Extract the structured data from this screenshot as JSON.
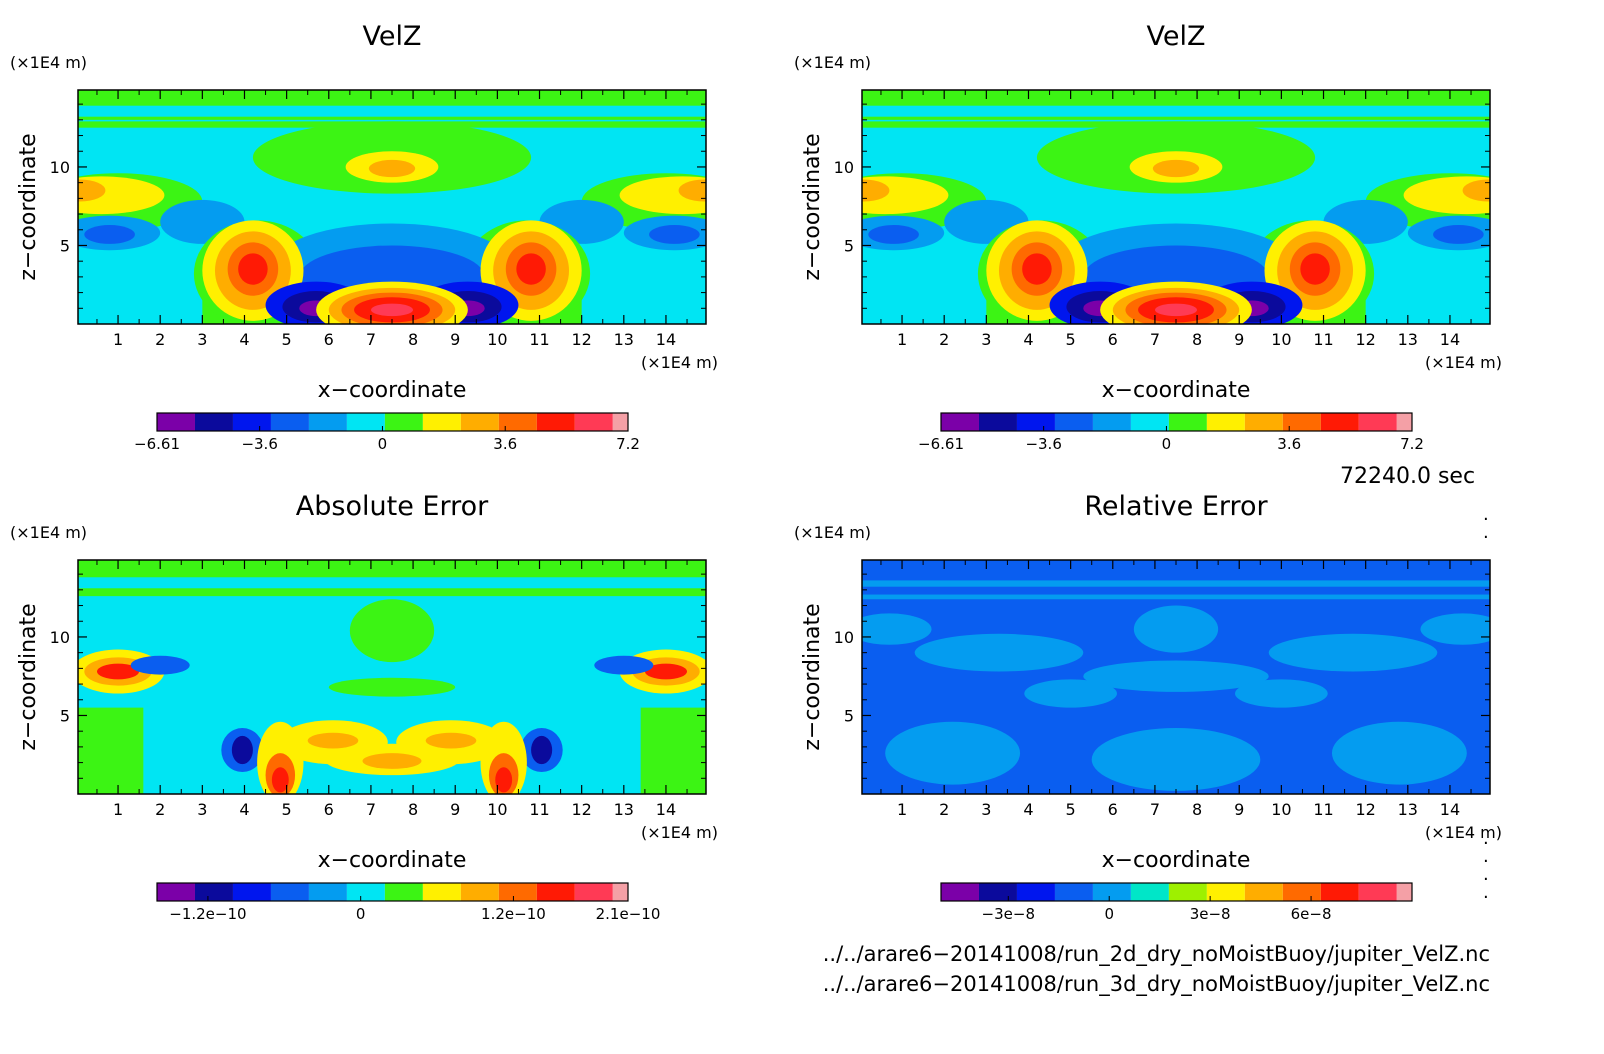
{
  "palette": [
    "#7b00a8",
    "#0b0a9c",
    "#0016ee",
    "#0a5ef0",
    "#049cf0",
    "#00e5f3",
    "#3cf414",
    "#fff000",
    "#ffad00",
    "#ff6a00",
    "#ff1a05",
    "#ff3a55",
    "#f4a0a6"
  ],
  "panels": [
    {
      "title": "VelZ",
      "xlabel": "x−coordinate",
      "ylabel": "z−coordinate",
      "x_unit": "(×1E4 m)",
      "y_unit": "(×1E4 m)",
      "colorbar_labels": [
        "−6.61",
        "−3.6",
        "0",
        "3.6",
        "7.2"
      ]
    },
    {
      "title": "VelZ",
      "xlabel": "x−coordinate",
      "ylabel": "z−coordinate",
      "x_unit": "(×1E4 m)",
      "y_unit": "(×1E4 m)",
      "colorbar_labels": [
        "−6.61",
        "−3.6",
        "0",
        "3.6",
        "7.2"
      ]
    },
    {
      "title": "Absolute Error",
      "xlabel": "x−coordinate",
      "ylabel": "z−coordinate",
      "x_unit": "(×1E4 m)",
      "y_unit": "(×1E4 m)",
      "colorbar_labels": [
        "−1.2e−10",
        "0",
        "1.2e−10",
        "2.1e−10"
      ]
    },
    {
      "title": "Relative Error",
      "xlabel": "x−coordinate",
      "ylabel": "z−coordinate",
      "x_unit": "(×1E4 m)",
      "y_unit": "(×1E4 m)",
      "colorbar_labels": [
        "−3e−8",
        "0",
        "3e−8",
        "6e−8"
      ]
    }
  ],
  "time_label": "72240.0 sec",
  "files": [
    "../../arare6−20141008/run_2d_dry_noMoistBuoy/jupiter_VelZ.nc",
    "../../arare6−20141008/run_3d_dry_noMoistBuoy/jupiter_VelZ.nc"
  ],
  "chart_data": [
    {
      "type": "heatmap",
      "title": "VelZ",
      "xlabel": "x−coordinate",
      "ylabel": "z−coordinate",
      "x_ticks": [
        1,
        2,
        3,
        4,
        5,
        6,
        7,
        8,
        9,
        10,
        11,
        12,
        13,
        14
      ],
      "y_ticks": [
        5,
        10
      ],
      "xlim": [
        0.05,
        14.95
      ],
      "ylim": [
        0,
        14.9
      ],
      "colorbar": {
        "min": -6.61,
        "max": 7.2,
        "tick_values": [
          -6.61,
          -3.6,
          0,
          3.6,
          7.2
        ]
      },
      "features": [
        {
          "x": 7.5,
          "z": 1.2,
          "value": 7.2
        },
        {
          "x": 4.2,
          "z": 3.5,
          "value": 6.0
        },
        {
          "x": 10.8,
          "z": 3.5,
          "value": 6.0
        },
        {
          "x": 5.7,
          "z": 1.3,
          "value": -6.6
        },
        {
          "x": 9.3,
          "z": 1.3,
          "value": -6.6
        },
        {
          "x": 7.5,
          "z": 10.0,
          "value": 3.6
        },
        {
          "x": 0.1,
          "z": 8.5,
          "value": 4.8
        },
        {
          "x": 14.9,
          "z": 8.5,
          "value": 4.8
        },
        {
          "x": 0.8,
          "z": 5.8,
          "value": -4.2
        },
        {
          "x": 14.2,
          "z": 5.8,
          "value": -4.2
        }
      ]
    },
    {
      "type": "heatmap",
      "title": "VelZ",
      "xlabel": "x−coordinate",
      "ylabel": "z−coordinate",
      "x_ticks": [
        1,
        2,
        3,
        4,
        5,
        6,
        7,
        8,
        9,
        10,
        11,
        12,
        13,
        14
      ],
      "y_ticks": [
        5,
        10
      ],
      "xlim": [
        0.05,
        14.95
      ],
      "ylim": [
        0,
        14.9
      ],
      "colorbar": {
        "min": -6.61,
        "max": 7.2,
        "tick_values": [
          -6.61,
          -3.6,
          0,
          3.6,
          7.2
        ]
      },
      "features": [
        {
          "x": 7.5,
          "z": 1.2,
          "value": 7.2
        },
        {
          "x": 4.2,
          "z": 3.5,
          "value": 6.0
        },
        {
          "x": 10.8,
          "z": 3.5,
          "value": 6.0
        },
        {
          "x": 5.7,
          "z": 1.3,
          "value": -6.6
        },
        {
          "x": 9.3,
          "z": 1.3,
          "value": -6.6
        },
        {
          "x": 7.5,
          "z": 10.0,
          "value": 3.6
        },
        {
          "x": 0.1,
          "z": 8.5,
          "value": 4.8
        },
        {
          "x": 14.9,
          "z": 8.5,
          "value": 4.8
        },
        {
          "x": 0.8,
          "z": 5.8,
          "value": -4.2
        },
        {
          "x": 14.2,
          "z": 5.8,
          "value": -4.2
        }
      ]
    },
    {
      "type": "heatmap",
      "title": "Absolute Error",
      "xlabel": "x−coordinate",
      "ylabel": "z−coordinate",
      "x_ticks": [
        1,
        2,
        3,
        4,
        5,
        6,
        7,
        8,
        9,
        10,
        11,
        12,
        13,
        14
      ],
      "y_ticks": [
        5,
        10
      ],
      "xlim": [
        0.05,
        14.95
      ],
      "ylim": [
        0,
        14.9
      ],
      "colorbar": {
        "min": -1.6e-10,
        "max": 2.1e-10,
        "tick_values": [
          -1.2e-10,
          0,
          1.2e-10,
          2.1e-10
        ]
      },
      "features": [
        {
          "x": 4.85,
          "z": 1.0,
          "value": 2.1e-10
        },
        {
          "x": 10.15,
          "z": 1.0,
          "value": 2.1e-10
        },
        {
          "x": 1.0,
          "z": 7.8,
          "value": 1.7e-10
        },
        {
          "x": 14.0,
          "z": 7.8,
          "value": 1.7e-10
        },
        {
          "x": 3.95,
          "z": 2.8,
          "value": -1.6e-10
        },
        {
          "x": 11.05,
          "z": 2.8,
          "value": -1.6e-10
        },
        {
          "x": 6.2,
          "z": 3.5,
          "value": 1e-10
        },
        {
          "x": 8.8,
          "z": 3.5,
          "value": 1e-10
        },
        {
          "x": 7.5,
          "z": 2.1,
          "value": 8e-11
        }
      ]
    },
    {
      "type": "heatmap",
      "title": "Relative Error",
      "xlabel": "x−coordinate",
      "ylabel": "z−coordinate",
      "x_ticks": [
        1,
        2,
        3,
        4,
        5,
        6,
        7,
        8,
        9,
        10,
        11,
        12,
        13,
        14
      ],
      "y_ticks": [
        5,
        10
      ],
      "xlim": [
        0.05,
        14.95
      ],
      "ylim": [
        0,
        14.9
      ],
      "colorbar": {
        "min": -5e-08,
        "max": 9e-08,
        "tick_values": [
          -3e-08,
          0,
          3e-08,
          6e-08
        ]
      },
      "features": [
        {
          "x": 7.5,
          "z": 4.0,
          "value": -1e-08
        },
        {
          "x": 3.0,
          "z": 3.0,
          "value": -1e-08
        },
        {
          "x": 12.0,
          "z": 3.0,
          "value": -1e-08
        },
        {
          "x": 7.5,
          "z": 9.5,
          "value": 0.0
        }
      ]
    }
  ]
}
